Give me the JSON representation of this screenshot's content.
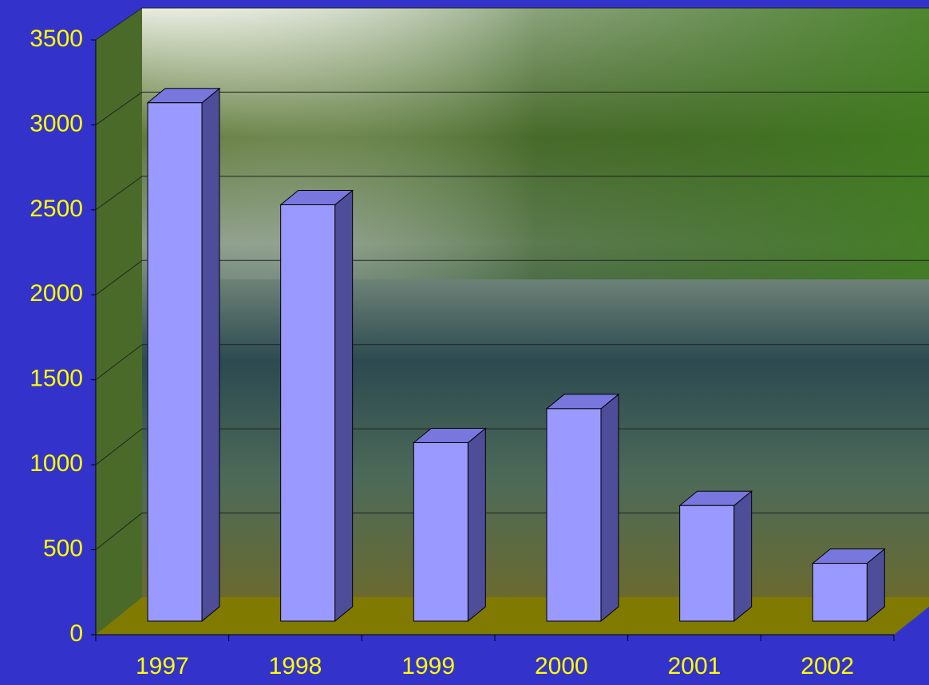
{
  "chart_data": {
    "type": "bar",
    "categories": [
      "1997",
      "1998",
      "1999",
      "2000",
      "2001",
      "2002"
    ],
    "values": [
      3050,
      2450,
      1050,
      1250,
      680,
      340
    ],
    "color": "#9999ff",
    "ylim": [
      0,
      3500
    ],
    "yticks": [
      0,
      500,
      1000,
      1500,
      2000,
      2500,
      3000,
      3500
    ],
    "grid": true
  }
}
